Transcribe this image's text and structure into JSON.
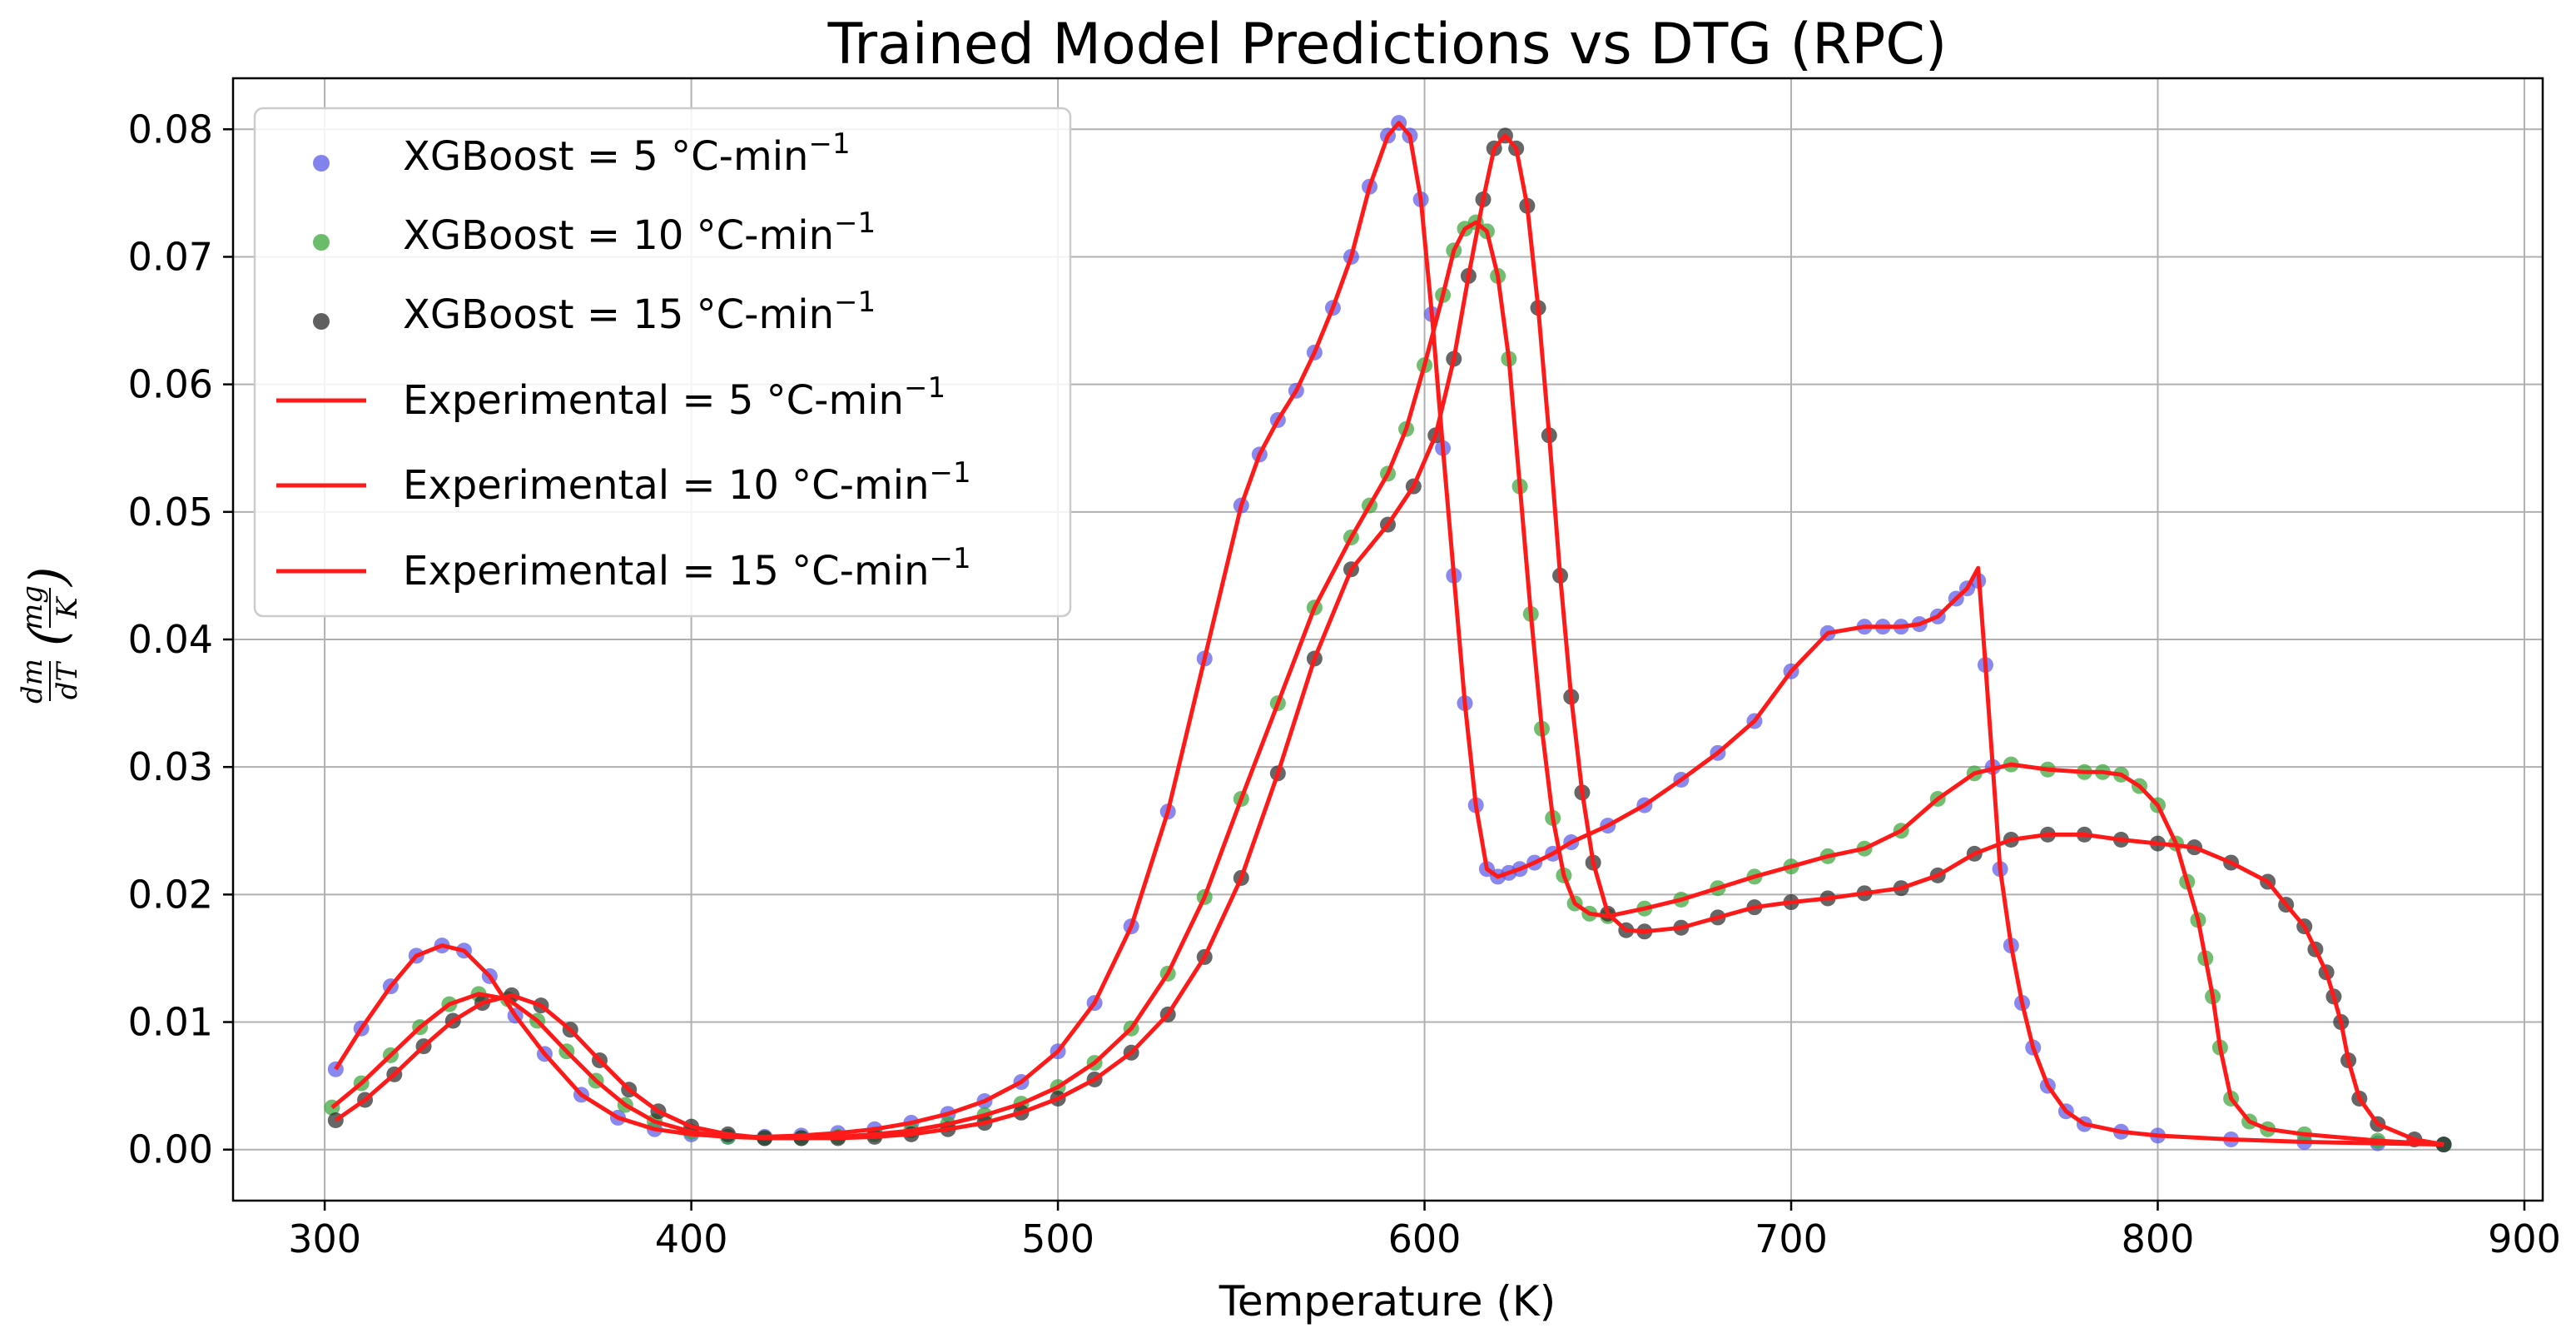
{
  "chart_data": {
    "type": "line",
    "title": "Trained Model Predictions vs DTG (RPC)",
    "xlabel": "Temperature (K)",
    "ylabel": {
      "prefix_numerator": "dm",
      "prefix_denominator": "dT",
      "unit_numerator": "mg",
      "unit_denominator": "K"
    },
    "xlim": [
      275,
      905
    ],
    "ylim": [
      -0.004,
      0.084
    ],
    "xticks": [
      300,
      400,
      500,
      600,
      700,
      800,
      900
    ],
    "xtick_labels": [
      "300",
      "400",
      "500",
      "600",
      "700",
      "800",
      "900"
    ],
    "yticks": [
      0,
      0.01,
      0.02,
      0.03,
      0.04,
      0.05,
      0.06,
      0.07,
      0.08
    ],
    "ytick_labels": [
      "0.00",
      "0.01",
      "0.02",
      "0.03",
      "0.04",
      "0.05",
      "0.06",
      "0.07",
      "0.08"
    ],
    "grid": true,
    "legend_position": "top-left",
    "unit_superscript": "−1",
    "series": [
      {
        "name": "XGBoost = 5 °C-min",
        "kind": "scatter",
        "color": "#5a5ae8",
        "x": [
          303,
          310,
          318,
          325,
          332,
          338,
          345,
          352,
          360,
          370,
          380,
          390,
          400,
          410,
          420,
          430,
          440,
          450,
          460,
          470,
          480,
          490,
          500,
          510,
          520,
          530,
          540,
          550,
          555,
          560,
          565,
          570,
          575,
          580,
          585,
          590,
          593,
          596,
          599,
          602,
          605,
          608,
          611,
          614,
          617,
          620,
          623,
          626,
          630,
          635,
          640,
          650,
          660,
          670,
          680,
          690,
          700,
          710,
          720,
          725,
          730,
          735,
          740,
          745,
          748,
          751,
          753,
          755,
          757,
          760,
          763,
          766,
          770,
          775,
          780,
          790,
          800,
          820,
          840,
          860,
          878
        ],
        "y": [
          0.0063,
          0.0095,
          0.0128,
          0.0152,
          0.016,
          0.0156,
          0.0136,
          0.0105,
          0.0075,
          0.0043,
          0.0025,
          0.0016,
          0.0012,
          0.001,
          0.001,
          0.0011,
          0.0013,
          0.0016,
          0.0021,
          0.0028,
          0.0038,
          0.0053,
          0.0077,
          0.0115,
          0.0175,
          0.0265,
          0.0385,
          0.0505,
          0.0545,
          0.0572,
          0.0595,
          0.0625,
          0.066,
          0.07,
          0.0755,
          0.0795,
          0.0805,
          0.0795,
          0.0745,
          0.0655,
          0.055,
          0.045,
          0.035,
          0.027,
          0.022,
          0.0214,
          0.0217,
          0.022,
          0.0225,
          0.0232,
          0.0241,
          0.0254,
          0.027,
          0.029,
          0.0311,
          0.0336,
          0.0375,
          0.0405,
          0.041,
          0.041,
          0.041,
          0.0412,
          0.0418,
          0.0432,
          0.044,
          0.0446,
          0.038,
          0.03,
          0.022,
          0.016,
          0.0115,
          0.008,
          0.005,
          0.003,
          0.002,
          0.0014,
          0.0011,
          0.0008,
          0.0006,
          0.0005,
          0.0004
        ]
      },
      {
        "name": "XGBoost = 10 °C-min",
        "kind": "scatter",
        "color": "#3aa53a",
        "x": [
          302,
          310,
          318,
          326,
          334,
          342,
          350,
          358,
          366,
          374,
          382,
          390,
          400,
          410,
          420,
          430,
          440,
          450,
          460,
          470,
          480,
          490,
          500,
          510,
          520,
          530,
          540,
          550,
          560,
          570,
          580,
          585,
          590,
          595,
          600,
          605,
          608,
          611,
          614,
          617,
          620,
          623,
          626,
          629,
          632,
          635,
          638,
          641,
          645,
          650,
          660,
          670,
          680,
          690,
          700,
          710,
          720,
          730,
          740,
          750,
          760,
          770,
          780,
          785,
          790,
          795,
          800,
          805,
          808,
          811,
          813,
          815,
          817,
          820,
          825,
          830,
          840,
          860,
          878
        ],
        "y": [
          0.0033,
          0.0052,
          0.0074,
          0.0096,
          0.0114,
          0.0122,
          0.0118,
          0.0101,
          0.0077,
          0.0054,
          0.0035,
          0.0022,
          0.0014,
          0.001,
          0.0009,
          0.0009,
          0.001,
          0.0012,
          0.0015,
          0.002,
          0.0027,
          0.0036,
          0.0049,
          0.0068,
          0.0095,
          0.0138,
          0.0198,
          0.0275,
          0.035,
          0.0425,
          0.048,
          0.0505,
          0.053,
          0.0565,
          0.0615,
          0.067,
          0.0705,
          0.0722,
          0.0727,
          0.072,
          0.0685,
          0.062,
          0.052,
          0.042,
          0.033,
          0.026,
          0.0215,
          0.0193,
          0.0185,
          0.0183,
          0.0189,
          0.0196,
          0.0205,
          0.0214,
          0.0222,
          0.023,
          0.0236,
          0.025,
          0.0275,
          0.0295,
          0.0302,
          0.0298,
          0.0296,
          0.0296,
          0.0294,
          0.0285,
          0.027,
          0.024,
          0.021,
          0.018,
          0.015,
          0.012,
          0.008,
          0.004,
          0.0022,
          0.0016,
          0.0012,
          0.0007,
          0.0004
        ]
      },
      {
        "name": "XGBoost = 15 °C-min",
        "kind": "scatter",
        "color": "#2b2b2b",
        "x": [
          303,
          311,
          319,
          327,
          335,
          343,
          351,
          359,
          367,
          375,
          383,
          391,
          400,
          410,
          420,
          430,
          440,
          450,
          460,
          470,
          480,
          490,
          500,
          510,
          520,
          530,
          540,
          550,
          560,
          570,
          580,
          590,
          597,
          603,
          608,
          612,
          616,
          619,
          622,
          625,
          628,
          631,
          634,
          637,
          640,
          643,
          646,
          650,
          655,
          660,
          670,
          680,
          690,
          700,
          710,
          720,
          730,
          740,
          750,
          760,
          770,
          780,
          790,
          800,
          810,
          820,
          830,
          835,
          840,
          843,
          846,
          848,
          850,
          852,
          855,
          860,
          870,
          878
        ],
        "y": [
          0.0023,
          0.0039,
          0.0059,
          0.0081,
          0.0101,
          0.0115,
          0.0121,
          0.0113,
          0.0094,
          0.007,
          0.0047,
          0.003,
          0.0018,
          0.0012,
          0.0009,
          0.0009,
          0.0009,
          0.001,
          0.0012,
          0.0016,
          0.0021,
          0.0029,
          0.004,
          0.0055,
          0.0076,
          0.0106,
          0.0151,
          0.0213,
          0.0295,
          0.0385,
          0.0455,
          0.049,
          0.052,
          0.056,
          0.062,
          0.0685,
          0.0745,
          0.0785,
          0.0795,
          0.0785,
          0.074,
          0.066,
          0.056,
          0.045,
          0.0355,
          0.028,
          0.0225,
          0.0185,
          0.0172,
          0.0171,
          0.0174,
          0.0182,
          0.019,
          0.0194,
          0.0197,
          0.0201,
          0.0205,
          0.0215,
          0.0232,
          0.0243,
          0.0247,
          0.0247,
          0.0243,
          0.024,
          0.0237,
          0.0225,
          0.021,
          0.0192,
          0.0175,
          0.0157,
          0.0139,
          0.012,
          0.01,
          0.007,
          0.004,
          0.002,
          0.0008,
          0.0004
        ]
      },
      {
        "name": "Experimental = 5 °C-min",
        "kind": "line",
        "color": "#ff1a1a",
        "x": [
          303,
          310,
          318,
          325,
          332,
          338,
          345,
          352,
          360,
          370,
          380,
          390,
          400,
          410,
          420,
          430,
          440,
          450,
          460,
          470,
          480,
          490,
          500,
          510,
          520,
          530,
          540,
          550,
          555,
          560,
          565,
          570,
          575,
          580,
          585,
          590,
          593,
          596,
          599,
          602,
          605,
          608,
          611,
          614,
          617,
          620,
          623,
          626,
          630,
          635,
          640,
          650,
          660,
          670,
          680,
          690,
          700,
          710,
          720,
          725,
          730,
          735,
          740,
          745,
          748,
          751,
          753,
          755,
          757,
          760,
          763,
          766,
          770,
          775,
          780,
          790,
          800,
          820,
          840,
          860,
          878
        ],
        "y": [
          0.0063,
          0.0095,
          0.0128,
          0.0152,
          0.016,
          0.0156,
          0.0136,
          0.0105,
          0.0075,
          0.0043,
          0.0025,
          0.0016,
          0.0012,
          0.001,
          0.001,
          0.0011,
          0.0013,
          0.0016,
          0.0021,
          0.0028,
          0.0038,
          0.0053,
          0.0077,
          0.0115,
          0.0175,
          0.0265,
          0.0385,
          0.0505,
          0.0545,
          0.0572,
          0.0595,
          0.0625,
          0.066,
          0.07,
          0.0755,
          0.0795,
          0.0805,
          0.0795,
          0.0745,
          0.0655,
          0.055,
          0.045,
          0.035,
          0.027,
          0.022,
          0.0214,
          0.0217,
          0.022,
          0.0225,
          0.0232,
          0.0241,
          0.0254,
          0.027,
          0.029,
          0.0311,
          0.0336,
          0.0375,
          0.0405,
          0.041,
          0.041,
          0.041,
          0.0412,
          0.0418,
          0.0432,
          0.044,
          0.0456,
          0.038,
          0.03,
          0.022,
          0.016,
          0.0115,
          0.008,
          0.005,
          0.003,
          0.002,
          0.0014,
          0.0011,
          0.0008,
          0.0006,
          0.0005,
          0.0004
        ]
      },
      {
        "name": "Experimental = 10 °C-min",
        "kind": "line",
        "color": "#ff1a1a",
        "x": [
          302,
          310,
          318,
          326,
          334,
          342,
          350,
          358,
          366,
          374,
          382,
          390,
          400,
          410,
          420,
          430,
          440,
          450,
          460,
          470,
          480,
          490,
          500,
          510,
          520,
          530,
          540,
          550,
          560,
          570,
          580,
          585,
          590,
          595,
          600,
          605,
          608,
          611,
          614,
          617,
          620,
          623,
          626,
          629,
          632,
          635,
          638,
          641,
          645,
          650,
          660,
          670,
          680,
          690,
          700,
          710,
          720,
          730,
          740,
          750,
          760,
          770,
          780,
          785,
          790,
          795,
          800,
          805,
          808,
          811,
          813,
          815,
          817,
          820,
          825,
          830,
          840,
          860,
          878
        ],
        "y": [
          0.0033,
          0.0052,
          0.0074,
          0.0096,
          0.0114,
          0.0122,
          0.0118,
          0.0101,
          0.0077,
          0.0054,
          0.0035,
          0.0022,
          0.0014,
          0.001,
          0.0009,
          0.0009,
          0.001,
          0.0012,
          0.0015,
          0.002,
          0.0027,
          0.0036,
          0.0049,
          0.0068,
          0.0095,
          0.0138,
          0.0198,
          0.0275,
          0.035,
          0.0425,
          0.048,
          0.0505,
          0.053,
          0.0565,
          0.0615,
          0.067,
          0.0705,
          0.0722,
          0.0727,
          0.072,
          0.0685,
          0.062,
          0.052,
          0.042,
          0.033,
          0.026,
          0.0215,
          0.0193,
          0.0185,
          0.0183,
          0.0189,
          0.0196,
          0.0205,
          0.0214,
          0.0222,
          0.023,
          0.0236,
          0.025,
          0.0275,
          0.0295,
          0.0302,
          0.0298,
          0.0296,
          0.0296,
          0.0294,
          0.0285,
          0.027,
          0.024,
          0.021,
          0.018,
          0.015,
          0.012,
          0.008,
          0.004,
          0.0022,
          0.0016,
          0.0012,
          0.0007,
          0.0004
        ]
      },
      {
        "name": "Experimental = 15 °C-min",
        "kind": "line",
        "color": "#ff1a1a",
        "x": [
          303,
          311,
          319,
          327,
          335,
          343,
          351,
          359,
          367,
          375,
          383,
          391,
          400,
          410,
          420,
          430,
          440,
          450,
          460,
          470,
          480,
          490,
          500,
          510,
          520,
          530,
          540,
          550,
          560,
          570,
          580,
          590,
          597,
          603,
          608,
          612,
          616,
          619,
          622,
          625,
          628,
          631,
          634,
          637,
          640,
          643,
          646,
          650,
          655,
          660,
          670,
          680,
          690,
          700,
          710,
          720,
          730,
          740,
          750,
          760,
          770,
          780,
          790,
          800,
          810,
          820,
          830,
          835,
          840,
          843,
          846,
          848,
          850,
          852,
          855,
          860,
          870,
          878
        ],
        "y": [
          0.0023,
          0.0039,
          0.0059,
          0.0081,
          0.0101,
          0.0115,
          0.0121,
          0.0113,
          0.0094,
          0.007,
          0.0047,
          0.003,
          0.0018,
          0.0012,
          0.0009,
          0.0009,
          0.0009,
          0.001,
          0.0012,
          0.0016,
          0.0021,
          0.0029,
          0.004,
          0.0055,
          0.0076,
          0.0106,
          0.0151,
          0.0213,
          0.0295,
          0.0385,
          0.0455,
          0.049,
          0.052,
          0.056,
          0.062,
          0.0685,
          0.0745,
          0.0785,
          0.0795,
          0.0785,
          0.074,
          0.066,
          0.056,
          0.045,
          0.0355,
          0.028,
          0.0225,
          0.0185,
          0.0172,
          0.0171,
          0.0174,
          0.0182,
          0.019,
          0.0194,
          0.0197,
          0.0201,
          0.0205,
          0.0215,
          0.0232,
          0.0243,
          0.0247,
          0.0247,
          0.0243,
          0.024,
          0.0237,
          0.0225,
          0.021,
          0.0192,
          0.0175,
          0.0157,
          0.0139,
          0.012,
          0.01,
          0.007,
          0.004,
          0.002,
          0.0008,
          0.0004
        ]
      }
    ]
  }
}
